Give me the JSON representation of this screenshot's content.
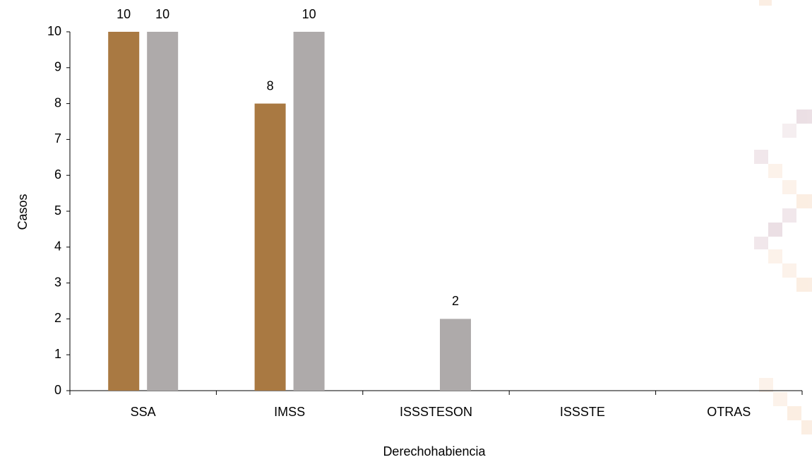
{
  "chart_data": {
    "type": "bar",
    "x_label": "Derechohabiencia",
    "y_label": "Casos",
    "categories": [
      "SSA",
      "IMSS",
      "ISSSTESON",
      "ISSSTE",
      "OTRAS"
    ],
    "series": [
      {
        "color": "#a97942",
        "values": [
          10,
          8,
          0,
          0,
          0
        ]
      },
      {
        "color": "#aeaaaa",
        "values": [
          10,
          10,
          2,
          0,
          0
        ]
      }
    ],
    "ylim": [
      0,
      10
    ],
    "yticks": [
      0,
      1,
      2,
      3,
      4,
      5,
      6,
      7,
      8,
      9,
      10
    ]
  }
}
